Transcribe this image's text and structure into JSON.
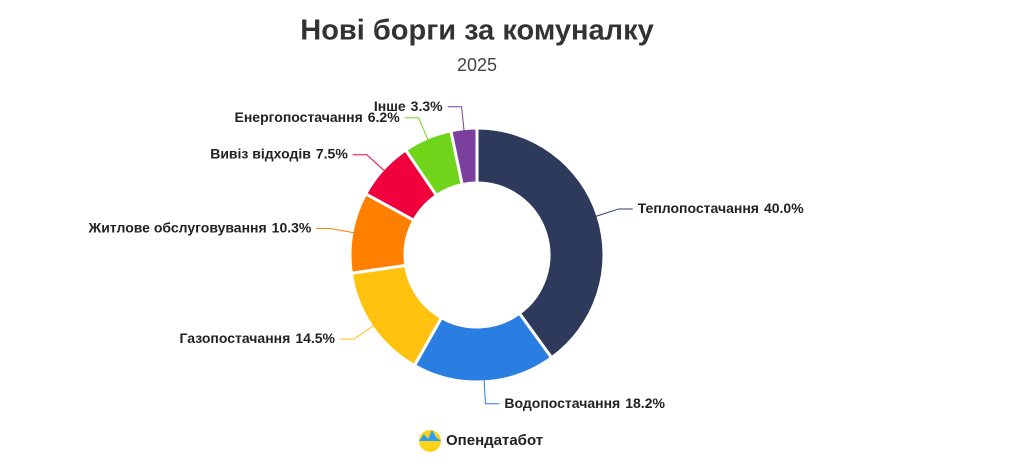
{
  "chart_data": {
    "type": "donut",
    "title": "Нові борги за комуналку",
    "subtitle": "2025",
    "categories": [
      "Теплопостачання",
      "Водопостачання",
      "Газопостачання",
      "Житлове обслуговування",
      "Вивіз відходів",
      "Енергопостачання",
      "Інше"
    ],
    "values": [
      40.0,
      18.2,
      14.5,
      10.3,
      7.5,
      6.2,
      3.3
    ],
    "value_labels": [
      "40.0%",
      "18.2%",
      "14.5%",
      "10.3%",
      "7.5%",
      "6.2%",
      "3.3%"
    ],
    "colors": [
      "#2e3a5c",
      "#2a7de1",
      "#ffc20e",
      "#ff7f00",
      "#f0003c",
      "#6fd41a",
      "#7b3f9e"
    ],
    "source": "Опендатабот"
  }
}
